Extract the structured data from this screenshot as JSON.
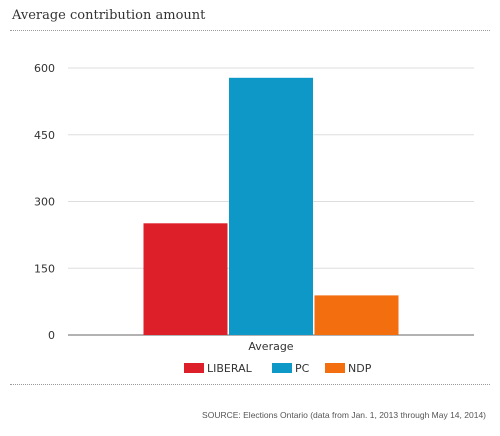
{
  "title": "Average contribution amount",
  "source": "SOURCE: Elections Ontario (data from Jan. 1, 2013 through May 14, 2014)",
  "chart_data": {
    "type": "bar",
    "categories": [
      "Average"
    ],
    "series": [
      {
        "name": "LIBERAL",
        "values": [
          251
        ],
        "color": "#dd1f2a"
      },
      {
        "name": "PC",
        "values": [
          578
        ],
        "color": "#0e98c8"
      },
      {
        "name": "NDP",
        "values": [
          89
        ],
        "color": "#f26e0f"
      }
    ],
    "ylim": [
      0,
      600
    ],
    "yticks": [
      0,
      150,
      300,
      450,
      600
    ],
    "grid": true,
    "legend": "bottom"
  }
}
